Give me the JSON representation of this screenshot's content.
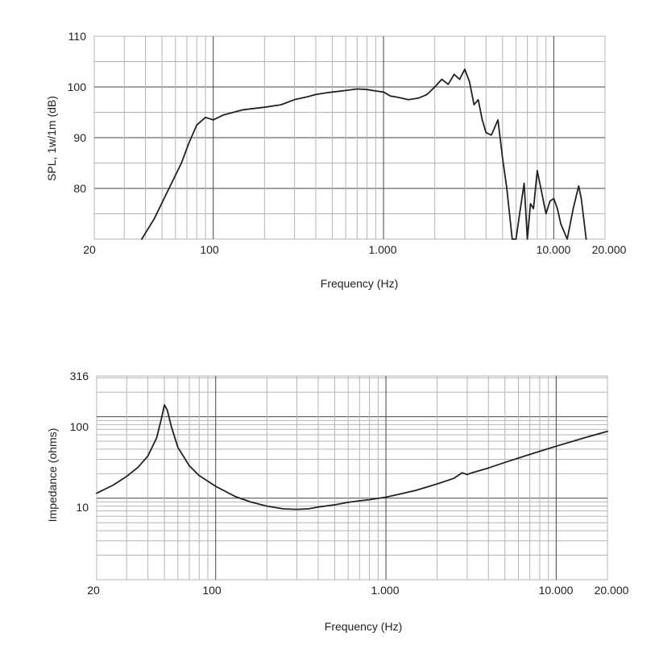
{
  "chart_data": [
    {
      "type": "line",
      "title": "",
      "xlabel": "Frequency (Hz)",
      "ylabel": "SPL, 1w/1m (dB)",
      "x_scale": "log",
      "xlim": [
        20,
        20000
      ],
      "ylim": [
        70,
        110
      ],
      "grid": true,
      "x_tick_values": [
        20,
        100,
        1000,
        10000,
        20000
      ],
      "x_tick_labels": [
        "20",
        "100",
        "1.000",
        "10.000",
        "20.000"
      ],
      "y_tick_values": [
        110,
        100,
        90,
        80
      ],
      "y_tick_labels": [
        "110",
        "100",
        "90",
        "80"
      ],
      "series": [
        {
          "x": [
            38,
            45,
            55,
            65,
            72,
            80,
            90,
            100,
            115,
            150,
            200,
            250,
            300,
            350,
            400,
            450,
            500,
            600,
            700,
            800,
            900,
            1000,
            1100,
            1200,
            1400,
            1600,
            1800,
            2000,
            2200,
            2400,
            2600,
            2800,
            3000,
            3200,
            3400,
            3600,
            3800,
            4000,
            4300,
            4700,
            5000,
            5300,
            5700,
            6000,
            6300,
            6700,
            7000,
            7300,
            7600,
            8000,
            8400,
            9000,
            9500,
            10000,
            10500,
            11000,
            12000,
            13000,
            14000,
            14500,
            15000,
            15500
          ],
          "y": [
            70,
            74,
            80,
            85,
            89,
            92.5,
            94,
            93.5,
            94.5,
            95.5,
            96,
            96.5,
            97.5,
            98,
            98.5,
            98.8,
            99,
            99.3,
            99.6,
            99.5,
            99.2,
            99,
            98.2,
            98,
            97.5,
            97.8,
            98.5,
            100,
            101.5,
            100.5,
            102.5,
            101.5,
            103.5,
            101,
            96.5,
            97.5,
            93.5,
            91,
            90.5,
            93.5,
            86,
            80,
            70,
            70,
            75,
            81,
            70,
            77,
            76,
            83.5,
            80,
            75,
            77.5,
            78,
            76,
            73,
            70,
            76,
            80.5,
            78,
            74,
            70
          ]
        }
      ]
    },
    {
      "type": "line",
      "title": "",
      "xlabel": "Frequency (Hz)",
      "ylabel": "Impedance (ohms)",
      "x_scale": "log",
      "y_scale": "log",
      "xlim": [
        20,
        20000
      ],
      "ylim": [
        1,
        316
      ],
      "grid": true,
      "x_tick_values": [
        20,
        100,
        1000,
        10000,
        20000
      ],
      "x_tick_labels": [
        "20",
        "100",
        "1.000",
        "10.000",
        "20.000"
      ],
      "y_tick_values": [
        316,
        100,
        10
      ],
      "y_tick_labels": [
        "316",
        "100",
        "10"
      ],
      "series": [
        {
          "x": [
            20,
            25,
            30,
            35,
            40,
            45,
            48,
            50,
            52,
            55,
            60,
            70,
            80,
            100,
            130,
            160,
            200,
            250,
            300,
            350,
            400,
            500,
            600,
            700,
            800,
            1000,
            1200,
            1500,
            2000,
            2500,
            2800,
            3000,
            3200,
            4000,
            5000,
            7000,
            10000,
            15000,
            20000
          ],
          "y": [
            11.5,
            14.5,
            18.5,
            24,
            33,
            55,
            95,
            140,
            120,
            75,
            42,
            25,
            19,
            14,
            10.5,
            9,
            8,
            7.4,
            7.3,
            7.4,
            7.8,
            8.3,
            8.9,
            9.3,
            9.6,
            10.3,
            11.2,
            12.5,
            15,
            17.5,
            20.5,
            19.5,
            20.5,
            23.5,
            27.5,
            34.5,
            43.5,
            56,
            66
          ]
        }
      ]
    }
  ]
}
